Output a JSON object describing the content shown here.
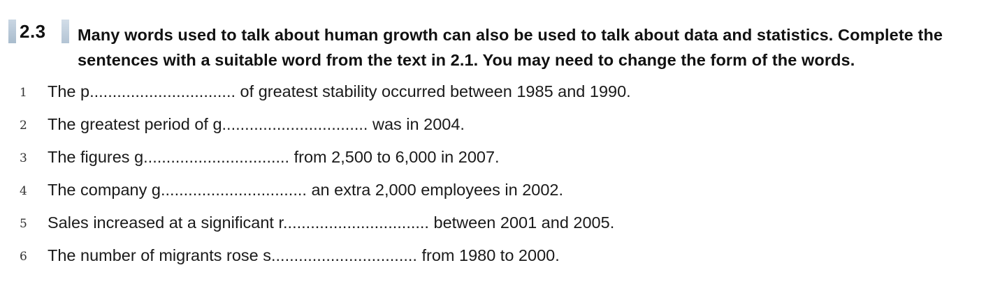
{
  "exercise": {
    "number": "2.3",
    "instructions": "Many words used to talk about human growth can also be used to talk about data and statistics. Complete the sentences with a suitable word from the text in 2.1. You may need to change the form of the words."
  },
  "items": [
    {
      "number": "1",
      "before": "The p",
      "blank": "................................",
      "after": " of greatest stability occurred between 1985 and 1990."
    },
    {
      "number": "2",
      "before": "The greatest period of g",
      "blank": "................................",
      "after": " was in 2004."
    },
    {
      "number": "3",
      "before": "The figures g",
      "blank": "................................",
      "after": " from 2,500 to 6,000 in 2007."
    },
    {
      "number": "4",
      "before": "The company g",
      "blank": "................................",
      "after": " an extra 2,000 employees in 2002."
    },
    {
      "number": "5",
      "before": "Sales increased at a significant r",
      "blank": "................................",
      "after": " between 2001 and 2005."
    },
    {
      "number": "6",
      "before": "The number of migrants rose s",
      "blank": "................................",
      "after": " from 1980 to 2000."
    }
  ]
}
